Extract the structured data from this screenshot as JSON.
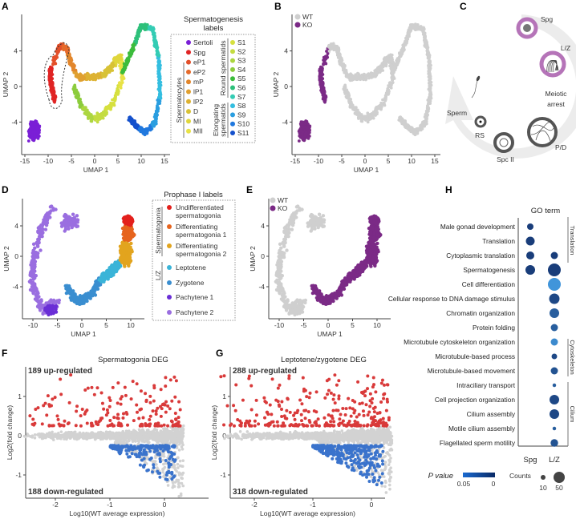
{
  "panels": {
    "A": "A",
    "B": "B",
    "C": "C",
    "D": "D",
    "E": "E",
    "F": "F",
    "G": "G",
    "H": "H"
  },
  "colors": {
    "ko": "#7b2a86",
    "wt": "#cfcfcf",
    "up": "#d93a3a",
    "down": "#3a73cc",
    "gray": "#d2d2d2"
  },
  "chart_data": [
    {
      "type": "scatter",
      "panel": "A",
      "xlabel": "UMAP 1",
      "ylabel": "UMAP 2",
      "xticks": [
        "-15",
        "-10",
        "-5",
        "0",
        "5",
        "10",
        "15"
      ],
      "yticks": [
        "4",
        "0",
        "-4"
      ],
      "legend_title": "Spermatogenesis labels",
      "legend_title_lines": [
        "Spermatogenesis",
        "labels"
      ],
      "group_labels": {
        "spermatocytes": "Spermatocytes",
        "round": "Round spermatids",
        "elongating_1": "Elongating",
        "elongating_2": "spermatids"
      },
      "legend_left": [
        {
          "label": "Sertoli",
          "color": "#7a1fd6"
        },
        {
          "label": "Spg",
          "color": "#e02424"
        },
        {
          "label": "eP1",
          "color": "#e3502a"
        },
        {
          "label": "eP2",
          "color": "#e66a2a"
        },
        {
          "label": "mP",
          "color": "#e2862c"
        },
        {
          "label": "lP1",
          "color": "#e0a030"
        },
        {
          "label": "lP2",
          "color": "#ddb232"
        },
        {
          "label": "D",
          "color": "#d8c236"
        },
        {
          "label": "MI",
          "color": "#e0d63c"
        },
        {
          "label": "MII",
          "color": "#e8e246"
        }
      ],
      "legend_right": [
        {
          "label": "S1",
          "color": "#d6e03e"
        },
        {
          "label": "S2",
          "color": "#c4dc40"
        },
        {
          "label": "S3",
          "color": "#acd640"
        },
        {
          "label": "S4",
          "color": "#8ccc3c"
        },
        {
          "label": "S5",
          "color": "#3cbc3c"
        },
        {
          "label": "S6",
          "color": "#2ec07a"
        },
        {
          "label": "S7",
          "color": "#34ccb4"
        },
        {
          "label": "S8",
          "color": "#34bee0"
        },
        {
          "label": "S9",
          "color": "#2a9ee0"
        },
        {
          "label": "S10",
          "color": "#2078de"
        },
        {
          "label": "S11",
          "color": "#1450cc"
        }
      ]
    },
    {
      "type": "scatter",
      "panel": "B",
      "xlabel": "UMAP 1",
      "ylabel": "UMAP 2",
      "xticks": [
        "-15",
        "-10",
        "-5",
        "0",
        "5",
        "10",
        "15"
      ],
      "yticks": [
        "4",
        "0",
        "-4"
      ],
      "legend": [
        {
          "label": "WT",
          "color": "#cfcfcf"
        },
        {
          "label": "KO",
          "color": "#7b2a86"
        }
      ]
    },
    {
      "type": "scatter",
      "panel": "D",
      "xlabel": "UMAP 1",
      "ylabel": "UMAP 2",
      "xticks": [
        "-10",
        "-5",
        "0",
        "5",
        "10"
      ],
      "yticks": [
        "4",
        "0",
        "-4"
      ],
      "legend_title": "Prophase I labels",
      "group_labels": {
        "spermatogonia": "Spermatogonia",
        "lz": "L/Z"
      },
      "legend": [
        {
          "lines": [
            "Undifferentiated",
            "spermatogonia"
          ],
          "color": "#e3201c"
        },
        {
          "lines": [
            "Differentiating",
            "spermatogonia 1"
          ],
          "color": "#e6641e"
        },
        {
          "lines": [
            "Differentiating",
            "spermatogonia 2"
          ],
          "color": "#e2a41e"
        },
        {
          "lines": [
            "Leptotene"
          ],
          "color": "#3ab4d8"
        },
        {
          "lines": [
            "Zygotene"
          ],
          "color": "#3a8ed0"
        },
        {
          "lines": [
            "Pachytene 1"
          ],
          "color": "#6a2ed6"
        },
        {
          "lines": [
            "Pachytene 2"
          ],
          "color": "#9a6ee0"
        }
      ]
    },
    {
      "type": "scatter",
      "panel": "E",
      "xlabel": "UMAP 1",
      "ylabel": "UMAP 2",
      "xticks": [
        "-10",
        "-5",
        "0",
        "5",
        "10"
      ],
      "yticks": [
        "4",
        "0",
        "-4"
      ],
      "legend": [
        {
          "label": "WT",
          "color": "#cfcfcf"
        },
        {
          "label": "KO",
          "color": "#7b2a86"
        }
      ]
    },
    {
      "type": "scatter",
      "panel": "F",
      "title": "Spermatogonia DEG",
      "xlabel": "Log10(WT average expression)",
      "ylabel": "Log2(fold change)",
      "xticks": [
        "-2",
        "-1",
        "0"
      ],
      "yticks": [
        "1",
        "0",
        "-1"
      ],
      "up_label": "189 up-regulated",
      "up_count": 189,
      "down_label": "188 down-regulated",
      "down_count": 188
    },
    {
      "type": "scatter",
      "panel": "G",
      "title": "Leptotene/zygotene DEG",
      "xlabel": "Log10(WT average expression)",
      "ylabel": "Log2(fold change)",
      "xticks": [
        "-2",
        "-1",
        "0"
      ],
      "yticks": [
        "1",
        "0",
        "-1"
      ],
      "up_label": "288 up-regulated",
      "up_count": 288,
      "down_label": "318 down-regulated",
      "down_count": 318
    },
    {
      "type": "scatter",
      "panel": "H",
      "title": "GO term",
      "columns": [
        "Spg",
        "L/Z"
      ],
      "terms": [
        {
          "term": "Male gonad development",
          "Spg": {
            "count": 16,
            "p": 0.005
          }
        },
        {
          "term": "Translation",
          "Spg": {
            "count": 30,
            "p": 0.005
          }
        },
        {
          "term": "Cytoplasmic translation",
          "Spg": {
            "count": 25,
            "p": 0.005
          },
          "L/Z": {
            "count": 20,
            "p": 0.005
          }
        },
        {
          "term": "Spermatogenesis",
          "Spg": {
            "count": 36,
            "p": 0.005
          },
          "L/Z": {
            "count": 64,
            "p": 0.005
          }
        },
        {
          "term": "Cell differentiation",
          "L/Z": {
            "count": 64,
            "p": 0.045
          }
        },
        {
          "term": "Cellular response to DNA damage stimulus",
          "L/Z": {
            "count": 42,
            "p": 0.01
          }
        },
        {
          "term": "Chromatin organization",
          "L/Z": {
            "count": 36,
            "p": 0.02
          }
        },
        {
          "term": "Protein folding",
          "L/Z": {
            "count": 20,
            "p": 0.02
          }
        },
        {
          "term": "Microtubule cytoskeleton organization",
          "L/Z": {
            "count": 20,
            "p": 0.04
          }
        },
        {
          "term": "Microtubule-based process",
          "L/Z": {
            "count": 12,
            "p": 0.01
          }
        },
        {
          "term": "Microtubule-based movement",
          "L/Z": {
            "count": 20,
            "p": 0.015
          }
        },
        {
          "term": "Intraciliary transport",
          "L/Z": {
            "count": 5,
            "p": 0.02
          }
        },
        {
          "term": "Cell projection organization",
          "L/Z": {
            "count": 36,
            "p": 0.01
          }
        },
        {
          "term": "Cilium assembly",
          "L/Z": {
            "count": 36,
            "p": 0.01
          }
        },
        {
          "term": "Motile cilium assembly",
          "L/Z": {
            "count": 5,
            "p": 0.02
          }
        },
        {
          "term": "Flagellated sperm motility",
          "L/Z": {
            "count": 22,
            "p": 0.015
          }
        }
      ],
      "groups": [
        "Translation",
        "Cytoskeleton",
        "Cilium"
      ],
      "pvalue_label": "P value",
      "pvalue_range": [
        "0.05",
        "0"
      ],
      "counts_label": "Counts",
      "counts_ticks": [
        "10",
        "50"
      ]
    }
  ],
  "diagram_c": {
    "stages": {
      "spg": "Spg",
      "lz": "L/Z",
      "arrest1": "Meiotic",
      "arrest2": "arrest",
      "pd": "P/D",
      "spc": "Spc II",
      "rs": "RS",
      "sperm": "Sperm"
    },
    "highlight_color": "#b574b8"
  }
}
